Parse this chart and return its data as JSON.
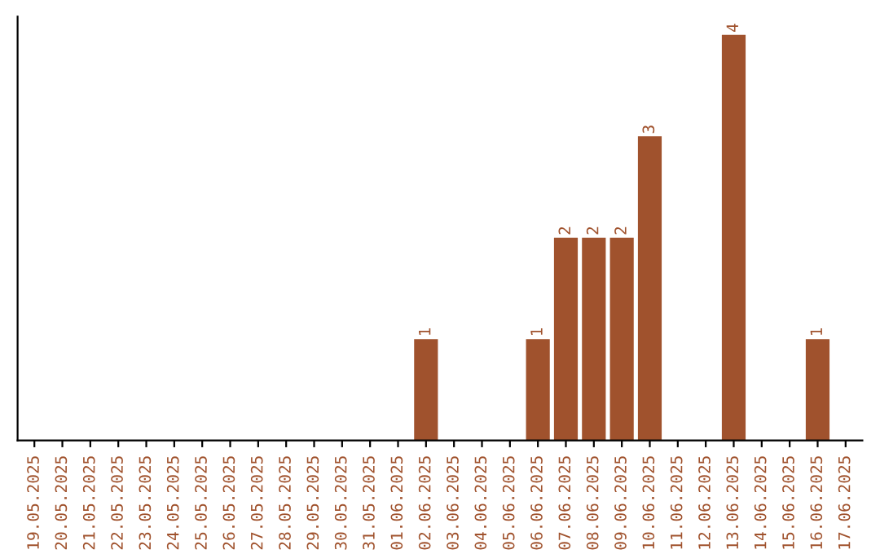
{
  "chart_data": {
    "type": "bar",
    "categories": [
      "19.05.2025",
      "20.05.2025",
      "21.05.2025",
      "22.05.2025",
      "23.05.2025",
      "24.05.2025",
      "25.05.2025",
      "26.05.2025",
      "27.05.2025",
      "28.05.2025",
      "29.05.2025",
      "30.05.2025",
      "31.05.2025",
      "01.06.2025",
      "02.06.2025",
      "03.06.2025",
      "04.06.2025",
      "05.06.2025",
      "06.06.2025",
      "07.06.2025",
      "08.06.2025",
      "09.06.2025",
      "10.06.2025",
      "11.06.2025",
      "12.06.2025",
      "13.06.2025",
      "14.06.2025",
      "15.06.2025",
      "16.06.2025",
      "17.06.2025"
    ],
    "values": [
      null,
      null,
      null,
      null,
      null,
      null,
      null,
      null,
      null,
      null,
      null,
      null,
      null,
      null,
      1,
      null,
      null,
      null,
      1,
      2,
      2,
      2,
      3,
      null,
      null,
      4,
      null,
      null,
      1,
      null
    ],
    "data_labels": true,
    "color": "#a0522d",
    "tick_labels": "x",
    "grid": false,
    "legend": false
  }
}
